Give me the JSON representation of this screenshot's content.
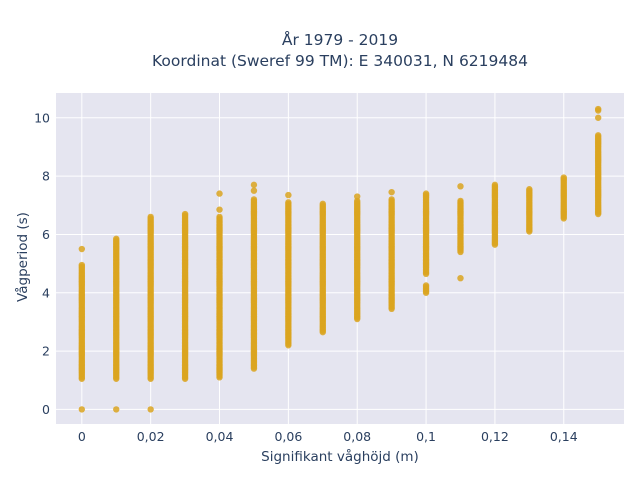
{
  "chart_data": {
    "type": "scatter",
    "title": "År 1979 - 2019",
    "subtitle": "Koordinat (Sweref 99 TM): E 340031, N 6219484",
    "xlabel": "Signifikant våghöjd (m)",
    "ylabel": "Vågperiod (s)",
    "xlim": [
      -0.0075,
      0.1575
    ],
    "ylim": [
      -0.5,
      10.85
    ],
    "x_ticks": [
      "0",
      "0,02",
      "0,04",
      "0,06",
      "0,08",
      "0,1",
      "0,12",
      "0,14"
    ],
    "x_tick_values": [
      0,
      0.02,
      0.04,
      0.06,
      0.08,
      0.1,
      0.12,
      0.14
    ],
    "y_ticks": [
      "0",
      "2",
      "4",
      "6",
      "8",
      "10"
    ],
    "y_tick_values": [
      0,
      2,
      4,
      6,
      8,
      10
    ],
    "grid": true,
    "marker_color": "#DAA520",
    "background_color": "#E5E5F0",
    "columns": [
      {
        "x": 0.0,
        "ranges": [
          [
            1.05,
            4.95
          ]
        ],
        "points": [
          0,
          5.5
        ]
      },
      {
        "x": 0.01,
        "ranges": [
          [
            1.05,
            5.85
          ]
        ],
        "points": [
          0
        ]
      },
      {
        "x": 0.02,
        "ranges": [
          [
            1.05,
            6.6
          ]
        ],
        "points": [
          0
        ]
      },
      {
        "x": 0.03,
        "ranges": [
          [
            1.05,
            6.7
          ]
        ],
        "points": []
      },
      {
        "x": 0.04,
        "ranges": [
          [
            1.1,
            6.6
          ]
        ],
        "points": [
          6.85,
          7.4
        ]
      },
      {
        "x": 0.05,
        "ranges": [
          [
            1.4,
            7.2
          ]
        ],
        "points": [
          7.5,
          7.7
        ]
      },
      {
        "x": 0.06,
        "ranges": [
          [
            2.2,
            7.1
          ]
        ],
        "points": [
          7.35
        ]
      },
      {
        "x": 0.07,
        "ranges": [
          [
            2.65,
            7.05
          ]
        ],
        "points": []
      },
      {
        "x": 0.08,
        "ranges": [
          [
            3.1,
            7.15
          ]
        ],
        "points": [
          7.3
        ]
      },
      {
        "x": 0.09,
        "ranges": [
          [
            3.45,
            7.2
          ]
        ],
        "points": [
          7.45
        ]
      },
      {
        "x": 0.1,
        "ranges": [
          [
            4.65,
            7.4
          ],
          [
            4.0,
            4.25
          ]
        ],
        "points": []
      },
      {
        "x": 0.11,
        "ranges": [
          [
            5.4,
            7.15
          ]
        ],
        "points": [
          4.5,
          7.65
        ]
      },
      {
        "x": 0.12,
        "ranges": [
          [
            5.65,
            7.7
          ]
        ],
        "points": []
      },
      {
        "x": 0.13,
        "ranges": [
          [
            6.1,
            7.55
          ]
        ],
        "points": []
      },
      {
        "x": 0.14,
        "ranges": [
          [
            6.55,
            7.95
          ]
        ],
        "points": []
      },
      {
        "x": 0.15,
        "ranges": [
          [
            6.7,
            9.4
          ]
        ],
        "points": [
          10.0,
          10.25,
          10.3
        ]
      }
    ]
  }
}
